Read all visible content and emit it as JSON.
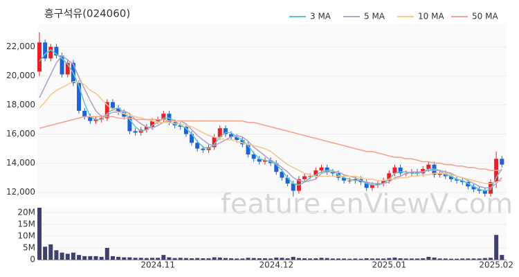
{
  "chart_data": [
    {
      "type": "candlestick",
      "title": "흥구석유(024060)",
      "watermark": "feature.enViewV.com",
      "up_color": "#e8202a",
      "down_color": "#1f62d6",
      "grid": true,
      "categories": [
        null,
        null,
        null,
        null,
        null,
        null,
        null,
        null,
        null,
        null,
        null,
        null,
        null,
        null,
        null,
        null,
        null,
        null,
        null,
        null,
        null,
        "2024.11",
        null,
        null,
        null,
        null,
        null,
        null,
        null,
        null,
        null,
        null,
        null,
        null,
        null,
        null,
        null,
        null,
        null,
        null,
        null,
        null,
        "2024.12",
        null,
        null,
        null,
        null,
        null,
        null,
        null,
        null,
        null,
        null,
        null,
        null,
        null,
        null,
        null,
        null,
        null,
        null,
        null,
        "2025.01",
        null,
        null,
        null,
        null,
        null,
        null,
        null,
        null,
        null,
        null,
        null,
        null,
        null,
        null,
        null,
        null,
        null,
        null,
        "2025.02",
        null
      ],
      "open": [
        20300,
        22300,
        21200,
        22000,
        21400,
        20100,
        20900,
        19500,
        17600,
        17200,
        16900,
        17000,
        17100,
        18200,
        17800,
        17500,
        17200,
        16200,
        16100,
        16300,
        16500,
        16900,
        17000,
        17400,
        16800,
        16600,
        16500,
        16000,
        15400,
        15000,
        14900,
        15100,
        15800,
        16400,
        16000,
        15800,
        15600,
        15300,
        14600,
        14300,
        14100,
        14200,
        14000,
        13400,
        13000,
        12600,
        12100,
        12900,
        13100,
        13100,
        13500,
        13700,
        13400,
        13300,
        13000,
        12800,
        12800,
        12900,
        12700,
        12300,
        12500,
        12600,
        12800,
        13300,
        13700,
        13300,
        13300,
        13400,
        13300,
        13600,
        13900,
        13200,
        13300,
        13100,
        12900,
        12800,
        12700,
        12400,
        12200,
        12100,
        11900,
        12700,
        14300
      ],
      "high": [
        23000,
        22500,
        22200,
        22200,
        21600,
        21100,
        21100,
        19700,
        17800,
        17400,
        17200,
        17300,
        18400,
        18400,
        18000,
        17700,
        17400,
        16400,
        16500,
        16700,
        17100,
        17200,
        17600,
        17600,
        17000,
        16800,
        16700,
        16200,
        15600,
        15200,
        15300,
        16000,
        16600,
        16600,
        16200,
        16000,
        15800,
        15500,
        14800,
        14500,
        14400,
        14400,
        14200,
        13600,
        13200,
        12800,
        13100,
        13300,
        13300,
        13700,
        13900,
        13900,
        13600,
        13500,
        13200,
        13000,
        13100,
        13100,
        12900,
        12700,
        12800,
        13000,
        13500,
        13900,
        13900,
        13500,
        13600,
        13600,
        13800,
        14100,
        14100,
        13500,
        13500,
        13300,
        13100,
        13000,
        12900,
        12600,
        12400,
        12300,
        12900,
        14800,
        14500
      ],
      "low": [
        20000,
        21000,
        21000,
        21200,
        19900,
        19900,
        19300,
        17400,
        17000,
        16700,
        16700,
        16800,
        16900,
        17600,
        17300,
        17000,
        16000,
        15900,
        15900,
        16100,
        16300,
        16700,
        16800,
        16600,
        16400,
        16300,
        15800,
        15200,
        14800,
        14700,
        14700,
        14900,
        15600,
        15800,
        15600,
        15400,
        15100,
        14400,
        14100,
        13900,
        13900,
        13800,
        13200,
        12800,
        12400,
        11700,
        11900,
        12700,
        12900,
        12900,
        13300,
        13200,
        13100,
        12800,
        12600,
        12600,
        12600,
        12500,
        12100,
        12100,
        12300,
        12400,
        12600,
        13100,
        13100,
        13100,
        13100,
        13100,
        13100,
        13400,
        13000,
        13000,
        12900,
        12700,
        12600,
        12500,
        12200,
        12000,
        11900,
        11700,
        11700,
        12300,
        13700
      ],
      "close": [
        22300,
        21200,
        22000,
        21400,
        20100,
        20900,
        19500,
        17600,
        17200,
        16900,
        17000,
        17100,
        18200,
        17800,
        17500,
        17200,
        16200,
        16100,
        16300,
        16500,
        16900,
        17000,
        17400,
        16800,
        16600,
        16500,
        16000,
        15400,
        15000,
        14900,
        15100,
        15800,
        16400,
        16000,
        15800,
        15600,
        15300,
        14600,
        14300,
        14100,
        14200,
        14000,
        13400,
        13000,
        12600,
        12100,
        12900,
        13100,
        13100,
        13500,
        13700,
        13400,
        13300,
        13000,
        12800,
        12800,
        12900,
        12700,
        12300,
        12500,
        12600,
        12800,
        13300,
        13700,
        13300,
        13300,
        13400,
        13300,
        13600,
        13900,
        13200,
        13300,
        13100,
        12900,
        12800,
        12700,
        12400,
        12200,
        12100,
        11900,
        12700,
        14300,
        13900
      ],
      "series": [
        {
          "name": "3 MA",
          "color": "#5ec8c2",
          "values": [
            21000,
            21500,
            21800,
            21500,
            21200,
            20800,
            20200,
            19300,
            18100,
            17200,
            17000,
            17000,
            17400,
            17700,
            17800,
            17500,
            17000,
            16500,
            16200,
            16300,
            16600,
            16800,
            17100,
            17100,
            16900,
            16600,
            16400,
            16000,
            15500,
            15100,
            15000,
            15300,
            15800,
            16100,
            16100,
            15800,
            15600,
            15200,
            14700,
            14300,
            14200,
            14100,
            13900,
            13500,
            13000,
            12600,
            12500,
            12700,
            13000,
            13200,
            13400,
            13500,
            13500,
            13200,
            13000,
            12900,
            12800,
            12800,
            12600,
            12500,
            12500,
            12600,
            12900,
            13300,
            13400,
            13400,
            13300,
            13300,
            13400,
            13600,
            13600,
            13500,
            13200,
            13100,
            12900,
            12800,
            12600,
            12400,
            12200,
            12100,
            12200,
            13000,
            13600
          ]
        },
        {
          "name": "5 MA",
          "color": "#b3a0cc",
          "values": [
            18500,
            19300,
            20100,
            20900,
            21400,
            21100,
            20800,
            19900,
            19100,
            18300,
            17600,
            17200,
            17300,
            17500,
            17500,
            17600,
            17400,
            17000,
            16700,
            16500,
            16400,
            16600,
            16800,
            16900,
            16900,
            16900,
            16700,
            16300,
            15900,
            15600,
            15300,
            15200,
            15400,
            15600,
            15800,
            15900,
            15800,
            15500,
            15100,
            14800,
            14500,
            14200,
            14000,
            13700,
            13400,
            13000,
            12800,
            12700,
            12800,
            12900,
            13300,
            13400,
            13400,
            13400,
            13200,
            13100,
            13000,
            12800,
            12700,
            12600,
            12600,
            12600,
            12700,
            13000,
            13100,
            13300,
            13400,
            13400,
            13400,
            13500,
            13500,
            13500,
            13400,
            13300,
            13100,
            13000,
            12800,
            12600,
            12400,
            12300,
            12300,
            12600,
            13000
          ]
        },
        {
          "name": "10 MA",
          "color": "#f2c890",
          "values": [
            17800,
            18200,
            18700,
            19000,
            19200,
            19400,
            19600,
            19600,
            19400,
            19000,
            18800,
            18400,
            18000,
            17700,
            17500,
            17400,
            17300,
            17200,
            17100,
            17000,
            16900,
            16800,
            16800,
            16800,
            16700,
            16700,
            16600,
            16500,
            16300,
            16100,
            15900,
            15800,
            15700,
            15600,
            15600,
            15500,
            15400,
            15300,
            15200,
            15100,
            15000,
            14800,
            14500,
            14200,
            13900,
            13700,
            13500,
            13300,
            13200,
            13100,
            13100,
            13100,
            13100,
            13100,
            13100,
            13100,
            13100,
            13000,
            12900,
            12900,
            12800,
            12800,
            12900,
            12900,
            13000,
            13000,
            13100,
            13100,
            13200,
            13200,
            13300,
            13300,
            13300,
            13200,
            13100,
            13000,
            12900,
            12800,
            12700,
            12600,
            12600,
            12700,
            12800
          ]
        },
        {
          "name": "50 MA",
          "color": "#f4a48e",
          "values": [
            16400,
            16500,
            16600,
            16700,
            16800,
            16900,
            17000,
            17100,
            17200,
            17200,
            17200,
            17200,
            17200,
            17200,
            17100,
            17100,
            17100,
            17000,
            17000,
            17000,
            17000,
            17000,
            17000,
            16900,
            16900,
            16900,
            16900,
            16900,
            16900,
            16900,
            16900,
            16900,
            16900,
            16900,
            16900,
            16900,
            16900,
            16800,
            16800,
            16700,
            16600,
            16500,
            16400,
            16300,
            16200,
            16100,
            16000,
            15900,
            15800,
            15700,
            15600,
            15500,
            15400,
            15300,
            15200,
            15100,
            15000,
            14900,
            14800,
            14800,
            14700,
            14600,
            14500,
            14400,
            14400,
            14300,
            14300,
            14200,
            14100,
            14100,
            14000,
            14000,
            13900,
            13900,
            13800,
            13800,
            13700,
            13700,
            13600,
            13600,
            13500,
            13500,
            13500
          ]
        }
      ],
      "ylim": [
        11600,
        23600
      ],
      "yticks": [
        {
          "value": 12000,
          "label": "12,000"
        },
        {
          "value": 14000,
          "label": "14,000"
        },
        {
          "value": 16000,
          "label": "16,000"
        },
        {
          "value": 18000,
          "label": "18,000"
        },
        {
          "value": 20000,
          "label": "20,000"
        },
        {
          "value": 22000,
          "label": "22,000"
        }
      ]
    },
    {
      "type": "bar",
      "color": "#40406c",
      "grid": true,
      "values": [
        22000000,
        5500000,
        6500000,
        4000000,
        3000000,
        2500000,
        3000000,
        2000000,
        1500000,
        1500000,
        1500000,
        1200000,
        5000000,
        1500000,
        1200000,
        1000000,
        1000000,
        800000,
        800000,
        700000,
        800000,
        800000,
        2000000,
        1000000,
        700000,
        800000,
        700000,
        600000,
        700000,
        600000,
        600000,
        1000000,
        900000,
        700000,
        600000,
        500000,
        500000,
        800000,
        700000,
        600000,
        600000,
        500000,
        900000,
        800000,
        600000,
        1200000,
        700000,
        600000,
        500000,
        600000,
        800000,
        700000,
        500000,
        500000,
        500000,
        400000,
        500000,
        400000,
        600000,
        500000,
        500000,
        500000,
        700000,
        900000,
        600000,
        500000,
        500000,
        500000,
        600000,
        1200000,
        900000,
        500000,
        500000,
        400000,
        400000,
        500000,
        500000,
        500000,
        500000,
        700000,
        800000,
        10500000,
        2000000
      ],
      "ylim": [
        0,
        22000000
      ],
      "yticks": [
        0,
        {
          "value": 5000000,
          "label": "5M"
        },
        {
          "value": 10000000,
          "label": "10M"
        },
        {
          "value": 15000000,
          "label": "15M"
        },
        {
          "value": 20000000,
          "label": "20M"
        }
      ]
    }
  ]
}
